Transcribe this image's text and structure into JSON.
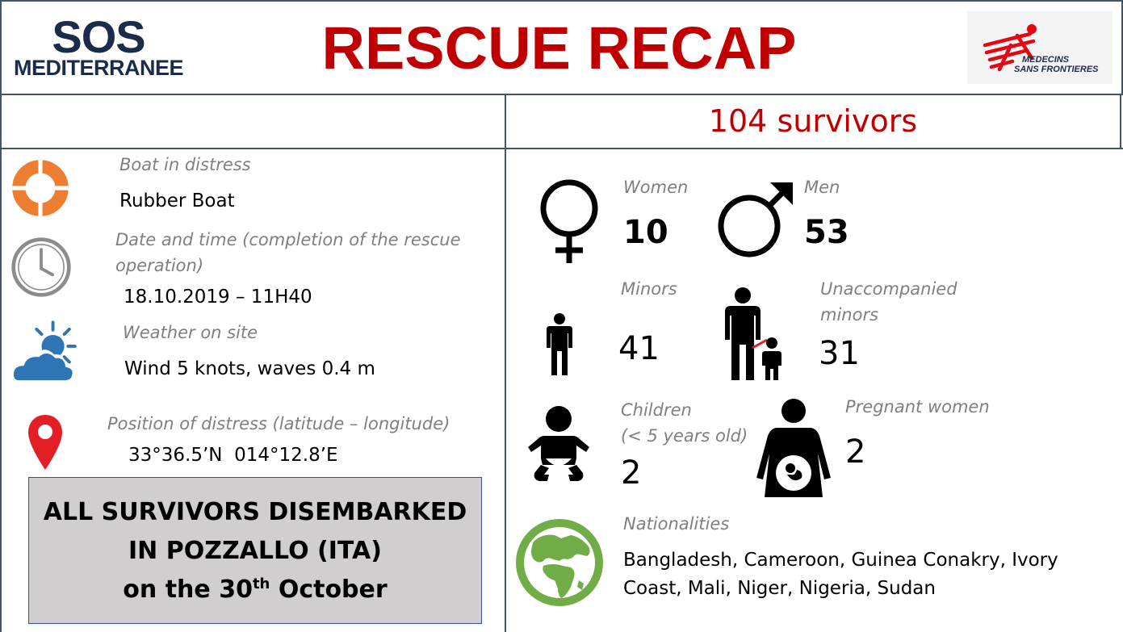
{
  "header": {
    "sos_logo_line1": "SOS",
    "sos_logo_line2": "MEDITERRANEE",
    "title": "RESCUE RECAP",
    "msf_logo_line1": "MEDECINS",
    "msf_logo_line2": "SANS FRONTIERES"
  },
  "summary": {
    "survivors": "104 survivors"
  },
  "left": {
    "boat_label": "Boat in distress",
    "boat_value": "Rubber Boat",
    "date_label": "Date and time (completion of the rescue operation)",
    "date_value": "18.10.2019 – 11H40",
    "weather_label": "Weather on site",
    "weather_value": "Wind 5 knots, waves 0.4 m",
    "position_label": "Position of distress (latitude – longitude)",
    "position_value": "33°36.5’N  014°12.8’E"
  },
  "disembark": {
    "line1": "ALL SURVIVORS DISEMBARKED",
    "line2": "IN POZZALLO (ITA)",
    "line3_pre": "on the 30",
    "line3_sup": "th",
    "line3_post": " October"
  },
  "stats": {
    "women_label": "Women",
    "women_value": "10",
    "men_label": "Men",
    "men_value": "53",
    "minors_label": "Minors",
    "minors_value": "41",
    "unaccompanied_label": "Unaccompanied minors",
    "unaccompanied_value": "31",
    "children_label_1": "Children",
    "children_label_2": "(< 5 years old)",
    "children_value": "2",
    "pregnant_label": "Pregnant women",
    "pregnant_value": "2",
    "nationalities_label": "Nationalities",
    "nationalities_value": "Bangladesh, Cameroon, Guinea Conakry, Ivory Coast, Mali, Niger, Nigeria, Sudan"
  },
  "colors": {
    "border": "#44546a",
    "title_red": "#c00000",
    "label_grey": "#7f7f7f",
    "navy": "#1a2b4c",
    "orange": "#ed7d31",
    "blue": "#2e75b6",
    "pin_red": "#e31e24",
    "globe_green": "#70ad47",
    "msf_red": "#e30613",
    "disembark_bg": "#d0cece"
  }
}
